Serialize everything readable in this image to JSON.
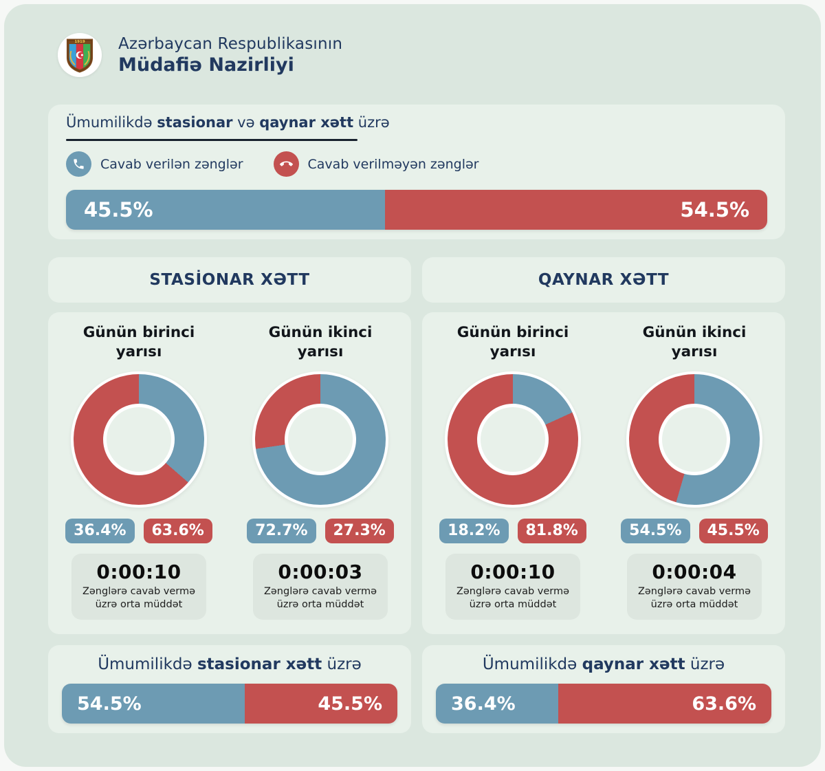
{
  "colors": {
    "blue": "#6d9bb3",
    "red": "#c35150",
    "navy": "#21395f",
    "page_bg": "#dbe7df",
    "card_bg": "#e8f1ea",
    "stat_bg": "#dde6df",
    "outer_bg": "#f6f8f6"
  },
  "header": {
    "title_line1": "Azərbaycan Respublikasının",
    "title_line2": "Müdafiə Nazirliyi",
    "logo": "ministry-of-defense-emblem"
  },
  "overall": {
    "title": {
      "prefix": "Ümumilikdə ",
      "bold1": "stasionar",
      "mid": " və ",
      "bold2": "qaynar xətt",
      "suffix": " üzrə"
    },
    "legend": [
      {
        "label": "Cavab verilən zənglər",
        "icon": "phone-answered-icon"
      },
      {
        "label": "Cavab verilməyən zənglər",
        "icon": "phone-declined-icon"
      }
    ],
    "bar": {
      "blue_pct": 45.5,
      "red_pct": 54.5,
      "blue_label": "45.5%",
      "red_label": "54.5%"
    }
  },
  "panels": [
    {
      "title": "STASİONAR XƏTT",
      "charts": [
        {
          "title_line1": "Günün birinci",
          "title_line2": "yarısı",
          "blue_pct": 36.4,
          "red_pct": 63.6,
          "blue_label": "36.4%",
          "red_label": "63.6%",
          "avg_time": "0:00:10",
          "caption_line1": "Zənglərə cavab vermə",
          "caption_line2": "üzrə orta müddət"
        },
        {
          "title_line1": "Günün ikinci",
          "title_line2": "yarısı",
          "blue_pct": 72.7,
          "red_pct": 27.3,
          "blue_label": "72.7%",
          "red_label": "27.3%",
          "avg_time": "0:00:03",
          "caption_line1": "Zənglərə cavab vermə",
          "caption_line2": "üzrə orta müddət"
        }
      ]
    },
    {
      "title": "QAYNAR XƏTT",
      "charts": [
        {
          "title_line1": "Günün birinci",
          "title_line2": "yarısı",
          "blue_pct": 18.2,
          "red_pct": 81.8,
          "blue_label": "18.2%",
          "red_label": "81.8%",
          "avg_time": "0:00:10",
          "caption_line1": "Zənglərə cavab vermə",
          "caption_line2": "üzrə orta müddət"
        },
        {
          "title_line1": "Günün ikinci",
          "title_line2": "yarısı",
          "blue_pct": 54.5,
          "red_pct": 45.5,
          "blue_label": "54.5%",
          "red_label": "45.5%",
          "avg_time": "0:00:04",
          "caption_line1": "Zənglərə cavab vermə",
          "caption_line2": "üzrə orta müddət"
        }
      ]
    }
  ],
  "bottom": [
    {
      "title": {
        "prefix": "Ümumilikdə ",
        "bold": "stasionar xətt",
        "suffix": " üzrə"
      },
      "bar": {
        "blue_pct": 54.5,
        "red_pct": 45.5,
        "blue_label": "54.5%",
        "red_label": "45.5%"
      }
    },
    {
      "title": {
        "prefix": "Ümumilikdə ",
        "bold": "qaynar xətt",
        "suffix": " üzrə"
      },
      "bar": {
        "blue_pct": 36.4,
        "red_pct": 63.6,
        "blue_label": "36.4%",
        "red_label": "63.6%"
      }
    }
  ],
  "chart_data": [
    {
      "type": "bar",
      "title": "Ümumilikdə stasionar və qaynar xətt üzrə",
      "unit": "%",
      "categories": [
        "Cavab verilən zənglər",
        "Cavab verilməyən zənglər"
      ],
      "values": [
        45.5,
        54.5
      ]
    },
    {
      "type": "pie",
      "title": "Stasionar xətt — Günün birinci yarısı",
      "unit": "%",
      "labels": [
        "Cavab verilən zənglər",
        "Cavab verilməyən zənglər"
      ],
      "values": [
        36.4,
        63.6
      ],
      "avg_answer_time": "0:00:10"
    },
    {
      "type": "pie",
      "title": "Stasionar xətt — Günün ikinci yarısı",
      "unit": "%",
      "labels": [
        "Cavab verilən zənglər",
        "Cavab verilməyən zənglər"
      ],
      "values": [
        72.7,
        27.3
      ],
      "avg_answer_time": "0:00:03"
    },
    {
      "type": "pie",
      "title": "Qaynar xətt — Günün birinci yarısı",
      "unit": "%",
      "labels": [
        "Cavab verilən zənglər",
        "Cavab verilməyən zənglər"
      ],
      "values": [
        18.2,
        81.8
      ],
      "avg_answer_time": "0:00:10"
    },
    {
      "type": "pie",
      "title": "Qaynar xətt — Günün ikinci yarısı",
      "unit": "%",
      "labels": [
        "Cavab verilən zənglər",
        "Cavab verilməyən zənglər"
      ],
      "values": [
        54.5,
        45.5
      ],
      "avg_answer_time": "0:00:04"
    },
    {
      "type": "bar",
      "title": "Ümumilikdə stasionar xətt üzrə",
      "unit": "%",
      "categories": [
        "Cavab verilən zənglər",
        "Cavab verilməyən zənglər"
      ],
      "values": [
        54.5,
        45.5
      ]
    },
    {
      "type": "bar",
      "title": "Ümumilikdə qaynar xətt üzrə",
      "unit": "%",
      "categories": [
        "Cavab verilən zənglər",
        "Cavab verilməyən zənglər"
      ],
      "values": [
        36.4,
        63.6
      ]
    }
  ]
}
